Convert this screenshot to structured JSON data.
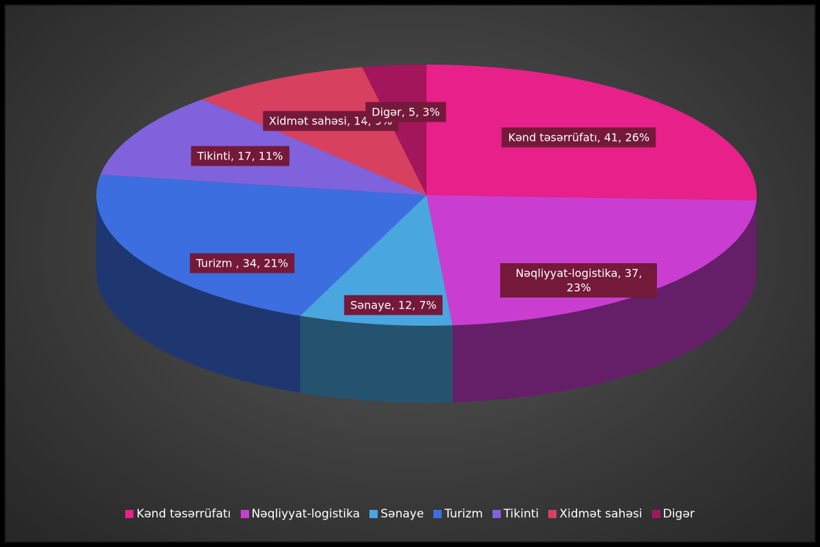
{
  "chart_data": {
    "type": "pie3d",
    "categories": [
      "Kənd təsərrüfatı",
      "Nəqliyyat-logistika",
      "Sənaye",
      "Turizm",
      "Tikinti",
      "Xidmət sahəsi",
      "Digər"
    ],
    "values": [
      41,
      37,
      12,
      34,
      17,
      14,
      5
    ],
    "value_labels": [
      "Kənd təsərrüfatı, 41, 26%",
      "Nəqliyyat-logistika, 37, 23%",
      "Sənaye, 12, 7%",
      "Turizm , 34, 21%",
      "Tikinti, 17, 11%",
      "Xidmət sahəsi, 14, 9%",
      "Digər, 5, 3%"
    ],
    "colors": [
      "#e8208a",
      "#c93ed1",
      "#4aa6de",
      "#3c6ee0",
      "#7f62dc",
      "#d8405f",
      "#a3165c"
    ],
    "legend": "bottom"
  }
}
